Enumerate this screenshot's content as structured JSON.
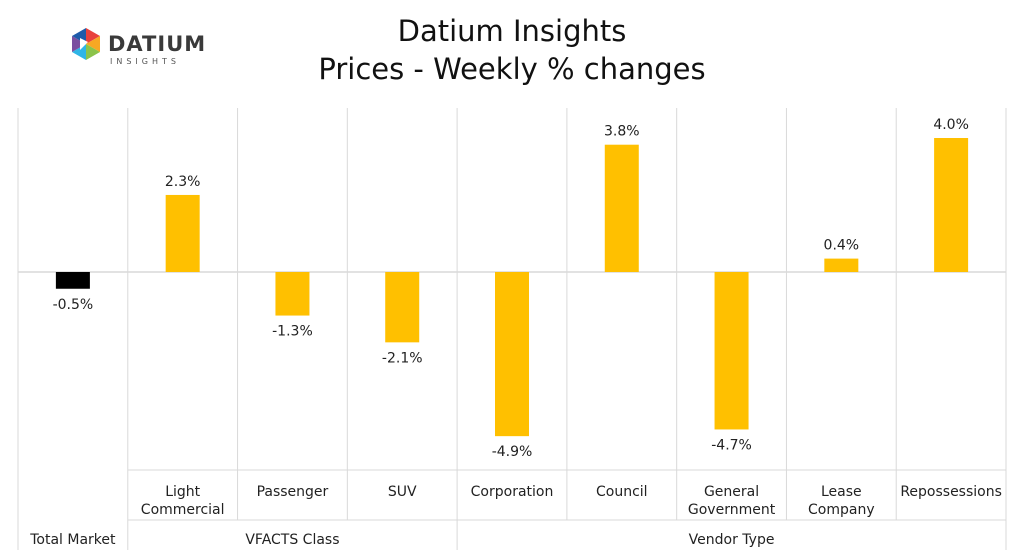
{
  "header": {
    "title_line1": "Datium Insights",
    "title_line2": "Prices - Weekly % changes"
  },
  "logo": {
    "word": "DATIUM",
    "sub": "INSIGHTS",
    "mark_colors": [
      "#E8413C",
      "#F7A823",
      "#8BC34A",
      "#2FB5E6",
      "#7B4FA0",
      "#1E5BAA"
    ]
  },
  "chart_data": {
    "type": "bar",
    "title": "Datium Insights\nPrices - Weekly % changes",
    "categories": [
      [
        "Total Market"
      ],
      [
        "Light",
        "Commercial"
      ],
      [
        "Passenger"
      ],
      [
        "SUV"
      ],
      [
        "Corporation"
      ],
      [
        "Council"
      ],
      [
        "General",
        "Government"
      ],
      [
        "Lease",
        "Company"
      ],
      [
        "Repossessions"
      ]
    ],
    "values": [
      -0.5,
      2.3,
      -1.3,
      -2.1,
      -4.9,
      3.8,
      -4.7,
      0.4,
      4.0
    ],
    "value_labels": [
      "-0.5%",
      "2.3%",
      "-1.3%",
      "-2.1%",
      "-4.9%",
      "3.8%",
      "-4.7%",
      "0.4%",
      "4.0%"
    ],
    "bar_colors": [
      "#000000",
      "#FFC000",
      "#FFC000",
      "#FFC000",
      "#FFC000",
      "#FFC000",
      "#FFC000",
      "#FFC000",
      "#FFC000"
    ],
    "groups": [
      {
        "label": "Total Market",
        "start": 0,
        "end": 0
      },
      {
        "label": "VFACTS Class",
        "start": 1,
        "end": 3
      },
      {
        "label": "Vendor Type",
        "start": 4,
        "end": 8
      }
    ],
    "ylim": [
      -6,
      5
    ],
    "grid": false,
    "legend": "none",
    "xlabel": "",
    "ylabel": ""
  }
}
